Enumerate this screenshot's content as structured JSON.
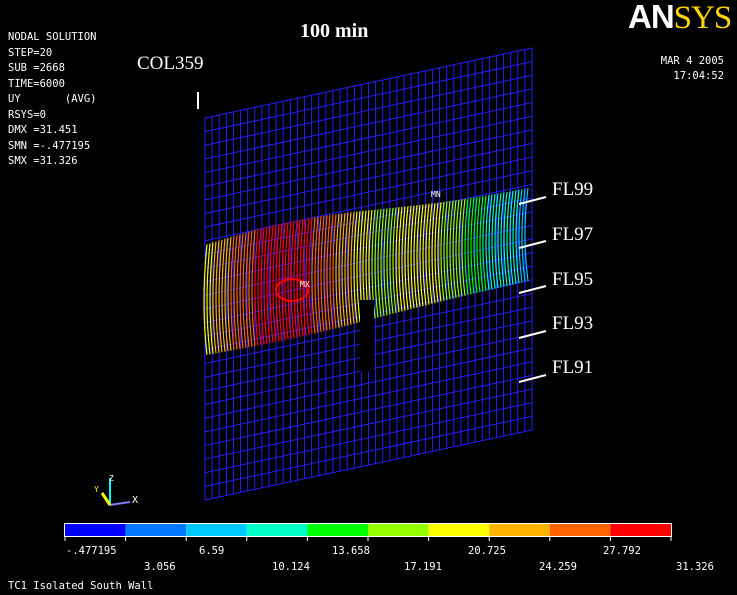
{
  "header": {
    "title": "100 min",
    "column_label": "COL359",
    "logo": {
      "part1": "AN",
      "part2": "SYS"
    },
    "date": "MAR  4 2005",
    "time": "17:04:52"
  },
  "solution_info": [
    "NODAL SOLUTION",
    "STEP=20",
    "SUB =2668",
    "TIME=6000",
    "UY       (AVG)",
    "RSYS=0",
    "DMX =31.451",
    "SMN =-.477195",
    "SMX =31.326"
  ],
  "markers": {
    "min": "MN",
    "max": "MX"
  },
  "floor_labels": [
    "FL99",
    "FL97",
    "FL95",
    "FL93",
    "FL91"
  ],
  "triad": {
    "x": "X",
    "y": "Y",
    "z": "Z"
  },
  "legend": {
    "colors": [
      "#0000ff",
      "#0078ff",
      "#00c8ff",
      "#00ffc8",
      "#00ff00",
      "#96ff00",
      "#ffff00",
      "#ffb400",
      "#ff6400",
      "#ff0000"
    ],
    "labels_top": [
      "-.477195",
      "6.59",
      "13.658",
      "20.725",
      "27.792"
    ],
    "labels_bottom": [
      "3.056",
      "10.124",
      "17.191",
      "24.259",
      "31.326"
    ]
  },
  "footer": "TC1 Isolated South Wall"
}
